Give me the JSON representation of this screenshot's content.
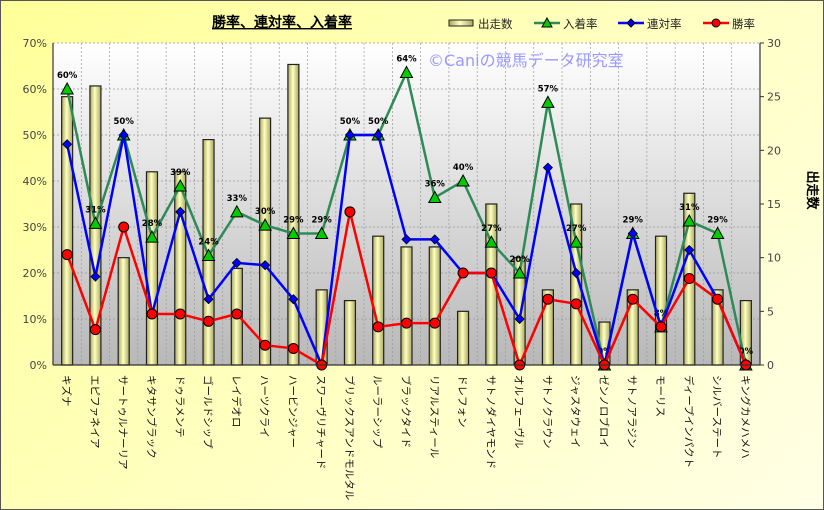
{
  "chart_data": {
    "type": "bar+line",
    "title": "勝率、連対率、入着率",
    "watermark": "©Caniの競馬データ研究室",
    "ylabel_right": "出走数",
    "ylim_left": [
      0,
      70
    ],
    "ylim_right": [
      0,
      30
    ],
    "yticks_left": [
      "0%",
      "10%",
      "20%",
      "30%",
      "40%",
      "50%",
      "60%",
      "70%"
    ],
    "yticks_right": [
      "0",
      "5",
      "10",
      "15",
      "20",
      "25",
      "30"
    ],
    "legend": [
      "出走数",
      "入着率",
      "連対率",
      "勝率"
    ],
    "legend_placement": "top-right",
    "grid": true,
    "categories": [
      "キズナ",
      "エピファネイア",
      "サートゥルナーリア",
      "キタサンブラック",
      "ドゥラメンテ",
      "ゴールドシップ",
      "レイデオロ",
      "ハーツクライ",
      "ハービンジャー",
      "スワーヴリチャード",
      "ブリックスアンドモルタル",
      "ルーラーシップ",
      "ブラックタイド",
      "リアルスティール",
      "ドレフォン",
      "サトノダイヤモンド",
      "オルフェーヴル",
      "サトノクラウン",
      "ジャスタウェイ",
      "ゼンノロブロイ",
      "サトノアラジン",
      "モーリス",
      "ディープインパクト",
      "シルバーステート",
      "キングカメハメハ"
    ],
    "series": [
      {
        "name": "出走数",
        "type": "bar",
        "axis": "right",
        "color": "#f0f0a0",
        "values": [
          25,
          26,
          10,
          18,
          18,
          21,
          9,
          23,
          28,
          7,
          6,
          12,
          11,
          11,
          5,
          15,
          10,
          7,
          15,
          4,
          7,
          12,
          16,
          7,
          6
        ]
      },
      {
        "name": "入着率",
        "type": "line",
        "axis": "left",
        "color": "#2e8b57",
        "marker": "#00cc00",
        "values": [
          60,
          30.8,
          50,
          27.8,
          38.9,
          23.8,
          33.3,
          30.4,
          28.6,
          28.6,
          50,
          50,
          63.6,
          36.4,
          40,
          26.7,
          20,
          57.1,
          26.7,
          0,
          28.6,
          8.3,
          31.3,
          28.6,
          0
        ],
        "labels": [
          "60%",
          "31%",
          "50%",
          "28%",
          "39%",
          "24%",
          "33%",
          "30%",
          "29%",
          "29%",
          "50%",
          "50%",
          "64%",
          "36%",
          "40%",
          "27%",
          "20%",
          "57%",
          "27%",
          "0%",
          "29%",
          "8%",
          "31%",
          "29%",
          "0%"
        ]
      },
      {
        "name": "連対率",
        "type": "line",
        "axis": "left",
        "color": "#0000ff",
        "values": [
          48,
          19.2,
          50,
          11.1,
          33.3,
          14.3,
          22.2,
          21.7,
          14.3,
          0,
          50,
          50,
          27.3,
          27.3,
          20,
          20,
          10,
          42.9,
          20,
          0,
          28.6,
          8.3,
          25,
          14.3,
          0
        ]
      },
      {
        "name": "勝率",
        "type": "line",
        "axis": "left",
        "color": "#ff0000",
        "values": [
          24,
          7.7,
          30,
          11.1,
          11.1,
          9.5,
          11.1,
          4.3,
          3.6,
          0,
          33.3,
          8.3,
          9.1,
          9.1,
          20,
          20,
          0,
          14.3,
          13.3,
          0,
          14.3,
          8.3,
          18.8,
          14.3,
          0
        ]
      }
    ]
  }
}
